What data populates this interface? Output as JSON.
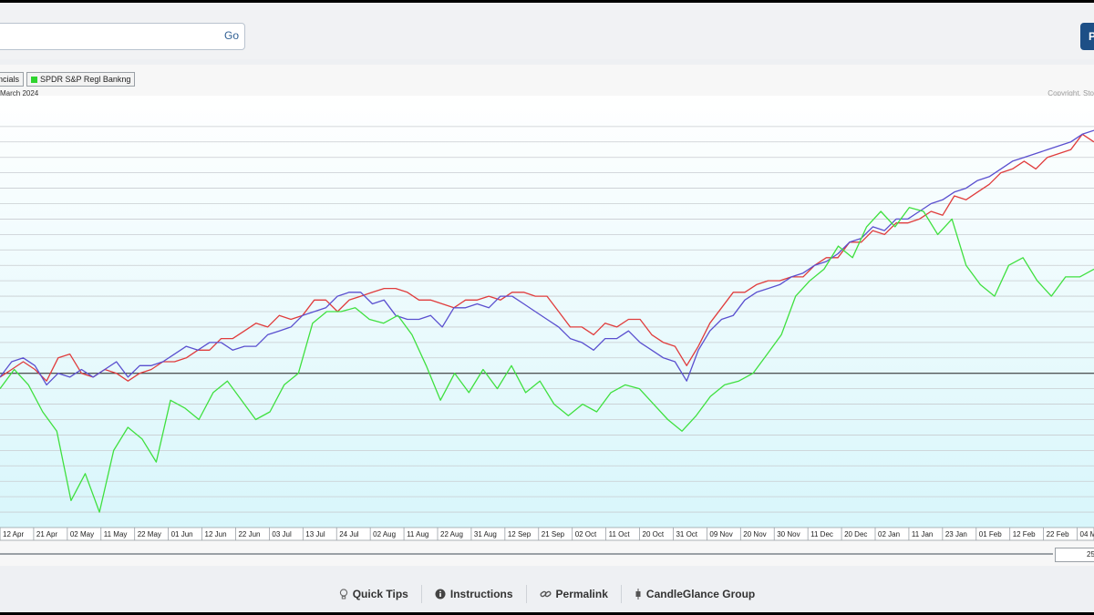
{
  "search": {
    "value": "",
    "go_label": "Go"
  },
  "header_button": {
    "label": "P"
  },
  "legend": [
    {
      "label": "ancials",
      "color": "#e03c3c"
    },
    {
      "label": "SPDR S&P Regl Bankng",
      "color": "#2fd42f"
    }
  ],
  "chart_meta": {
    "subtitle": "March 2024",
    "copyright": "Copyright, Sto"
  },
  "range_value": "25",
  "footer": {
    "quick_tips": "Quick Tips",
    "instructions": "Instructions",
    "permalink": "Permalink",
    "candleglance": "CandleGlance Group"
  },
  "chart_data": {
    "type": "line",
    "title": "",
    "x_ticks": [
      "12 Apr",
      "21 Apr",
      "02 May",
      "11 May",
      "22 May",
      "01 Jun",
      "12 Jun",
      "22 Jun",
      "03 Jul",
      "13 Jul",
      "24 Jul",
      "02 Aug",
      "11 Aug",
      "22 Aug",
      "31 Aug",
      "12 Sep",
      "21 Sep",
      "02 Oct",
      "11 Oct",
      "20 Oct",
      "31 Oct",
      "09 Nov",
      "20 Nov",
      "30 Nov",
      "11 Dec",
      "20 Dec",
      "02 Jan",
      "11 Jan",
      "23 Jan",
      "01 Feb",
      "12 Feb",
      "22 Feb",
      "04 M"
    ],
    "grid": true,
    "series": [
      {
        "color": "#e03c3c",
        "values": [
          -1,
          1,
          3,
          1,
          -2,
          4,
          5,
          0,
          -1,
          1,
          0,
          -2,
          0,
          1,
          3,
          3,
          4,
          6,
          6,
          9,
          9,
          11,
          13,
          12,
          15,
          14,
          15,
          19,
          19,
          16,
          19,
          20,
          21,
          22,
          22,
          21,
          19,
          19,
          18,
          17,
          19,
          19,
          20,
          19,
          21,
          21,
          20,
          20,
          16,
          12,
          12,
          10,
          13,
          12,
          14,
          14,
          10,
          8,
          7,
          2,
          7,
          13,
          17,
          21,
          21,
          23,
          24,
          24,
          25,
          25,
          28,
          30,
          30,
          34,
          34,
          37,
          36,
          39,
          39,
          40,
          42,
          41,
          46,
          45,
          47,
          49,
          52,
          53,
          55,
          53,
          56,
          57,
          58,
          62,
          60
        ]
      },
      {
        "color": "#5a4fcf",
        "values": [
          -1,
          3,
          4,
          2,
          -3,
          0,
          -1,
          1,
          -1,
          1,
          3,
          -1,
          2,
          2,
          3,
          5,
          7,
          6,
          8,
          8,
          6,
          7,
          7,
          10,
          11,
          12,
          15,
          16,
          17,
          20,
          21,
          21,
          18,
          19,
          15,
          14,
          14,
          15,
          12,
          17,
          17,
          18,
          17,
          20,
          20,
          18,
          16,
          14,
          12,
          9,
          8,
          6,
          9,
          9,
          11,
          8,
          6,
          4,
          3,
          -2,
          6,
          11,
          14,
          15,
          19,
          21,
          22,
          23,
          25,
          26,
          28,
          29,
          31,
          34,
          35,
          38,
          37,
          40,
          40,
          42,
          44,
          45,
          47,
          48,
          50,
          51,
          53,
          55,
          56,
          57,
          58,
          59,
          60,
          62,
          63
        ]
      },
      {
        "color": "#3fe03f",
        "values": [
          -4,
          1,
          -3,
          -10,
          -15,
          -33,
          -26,
          -36,
          -20,
          -14,
          -17,
          -23,
          -7,
          -9,
          -12,
          -5,
          -2,
          -7,
          -12,
          -10,
          -3,
          0,
          13,
          16,
          16,
          17,
          14,
          13,
          15,
          10,
          2,
          -7,
          0,
          -5,
          1,
          -4,
          2,
          -5,
          -2,
          -8,
          -11,
          -8,
          -10,
          -5,
          -3,
          -4,
          -8,
          -12,
          -15,
          -11,
          -6,
          -3,
          -2,
          0,
          5,
          10,
          20,
          24,
          27,
          33,
          30,
          38,
          42,
          38,
          43,
          42,
          36,
          40,
          28,
          23,
          20,
          28,
          30,
          24,
          20,
          25,
          25,
          27
        ]
      }
    ]
  }
}
